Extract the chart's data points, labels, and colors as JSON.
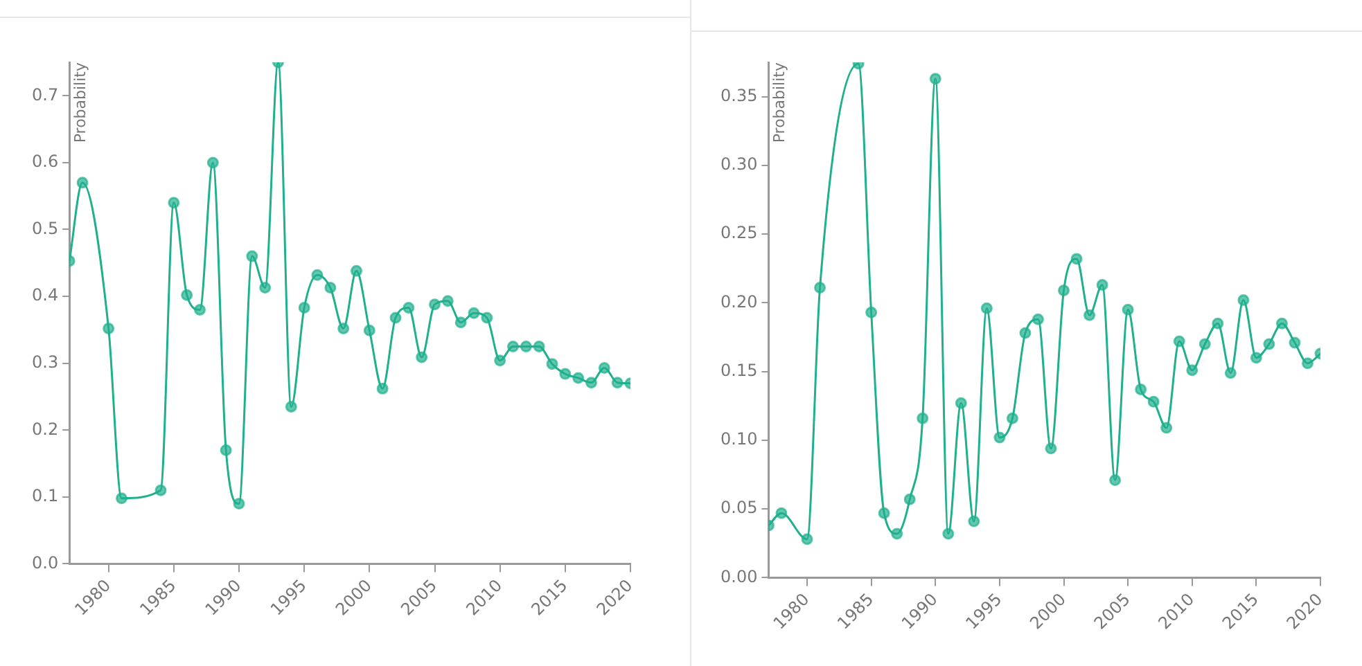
{
  "chart_data": [
    {
      "type": "line",
      "ylabel": "Probability",
      "marker": "circle",
      "line_style": "solid",
      "grid": false,
      "legend": false,
      "x": [
        1977,
        1978,
        1980,
        1981,
        1984,
        1985,
        1986,
        1987,
        1988,
        1989,
        1990,
        1991,
        1992,
        1993,
        1994,
        1995,
        1996,
        1997,
        1998,
        1999,
        2000,
        2001,
        2002,
        2003,
        2004,
        2005,
        2006,
        2007,
        2008,
        2009,
        2010,
        2011,
        2012,
        2013,
        2014,
        2015,
        2016,
        2017,
        2018,
        2019,
        2020
      ],
      "series": [
        {
          "color": "#1fb08c",
          "values": [
            0.453,
            0.57,
            0.352,
            0.098,
            0.11,
            0.54,
            0.402,
            0.38,
            0.6,
            0.17,
            0.09,
            0.46,
            0.413,
            0.75,
            0.235,
            0.383,
            0.432,
            0.413,
            0.352,
            0.438,
            0.349,
            0.262,
            0.368,
            0.383,
            0.309,
            0.388,
            0.393,
            0.361,
            0.375,
            0.368,
            0.304,
            0.325,
            0.325,
            0.325,
            0.299,
            0.284,
            0.278,
            0.271,
            0.293,
            0.271,
            0.27
          ]
        }
      ],
      "xlim": [
        1977,
        2020
      ],
      "xticks": [
        1980,
        1985,
        1990,
        1995,
        2000,
        2005,
        2010,
        2015,
        2020
      ],
      "ylim": [
        0,
        0.75
      ],
      "yticks": [
        {
          "value": 0,
          "label": "0.0"
        },
        0.1,
        0.2,
        0.3,
        0.4,
        0.5,
        0.6,
        0.7
      ]
    },
    {
      "type": "line",
      "ylabel": "Probability",
      "marker": "circle",
      "line_style": "solid",
      "grid": false,
      "legend": false,
      "x": [
        1977,
        1978,
        1980,
        1981,
        1984,
        1985,
        1986,
        1987,
        1988,
        1989,
        1990,
        1991,
        1992,
        1993,
        1994,
        1995,
        1996,
        1997,
        1998,
        1999,
        2000,
        2001,
        2002,
        2003,
        2004,
        2005,
        2006,
        2007,
        2008,
        2009,
        2010,
        2011,
        2012,
        2013,
        2014,
        2015,
        2016,
        2017,
        2018,
        2019,
        2020
      ],
      "series": [
        {
          "color": "#1fb08c",
          "values": [
            0.038,
            0.047,
            0.028,
            0.211,
            0.374,
            0.193,
            0.047,
            0.032,
            0.057,
            0.116,
            0.363,
            0.032,
            0.127,
            0.041,
            0.196,
            0.102,
            0.116,
            0.178,
            0.188,
            0.094,
            0.209,
            0.232,
            0.191,
            0.213,
            0.071,
            0.195,
            0.137,
            0.128,
            0.109,
            0.172,
            0.151,
            0.17,
            0.185,
            0.149,
            0.202,
            0.16,
            0.17,
            0.185,
            0.171,
            0.156,
            0.163
          ]
        }
      ],
      "xlim": [
        1977,
        2020
      ],
      "xticks": [
        1980,
        1985,
        1990,
        1995,
        2000,
        2005,
        2010,
        2015,
        2020
      ],
      "ylim": [
        0,
        0.375
      ],
      "yticks": [
        {
          "value": 0,
          "label": "0.00"
        },
        {
          "value": 0.05,
          "label": "0.05"
        },
        {
          "value": 0.1,
          "label": "0.10"
        },
        0.15,
        {
          "value": 0.2,
          "label": "0.20"
        },
        0.25,
        {
          "value": 0.3,
          "label": "0.30"
        },
        0.35
      ]
    }
  ]
}
